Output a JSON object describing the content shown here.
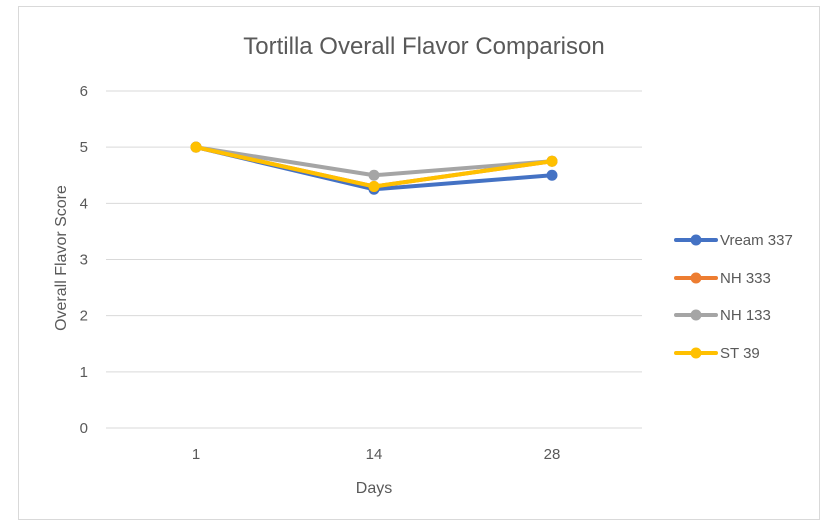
{
  "chart_data": {
    "type": "line",
    "title": "Tortilla Overall Flavor Comparison",
    "xlabel": "Days",
    "ylabel": "Overall Flavor Score",
    "categories": [
      "1",
      "14",
      "28"
    ],
    "ylim": [
      0,
      6
    ],
    "yticks": [
      0,
      1,
      2,
      3,
      4,
      5,
      6
    ],
    "grid": true,
    "legend_position": "right",
    "series": [
      {
        "name": "Vream 337",
        "color": "#4472c4",
        "values": [
          5,
          4.25,
          4.5
        ]
      },
      {
        "name": "NH 333",
        "color": "#ed7d31",
        "values": [
          5,
          4.3,
          4.75
        ]
      },
      {
        "name": "NH 133",
        "color": "#a5a5a5",
        "values": [
          5,
          4.5,
          4.75
        ]
      },
      {
        "name": "ST 39",
        "color": "#ffc000",
        "values": [
          5,
          4.3,
          4.75
        ]
      }
    ]
  }
}
